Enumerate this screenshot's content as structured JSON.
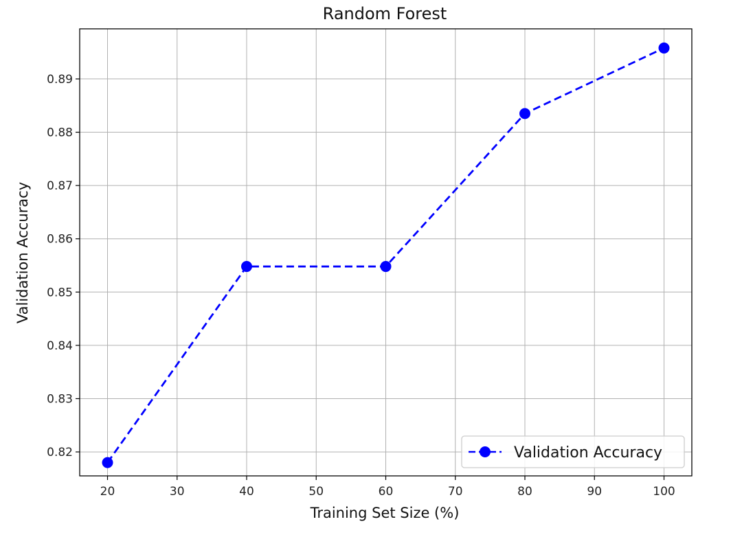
{
  "chart_data": {
    "type": "line",
    "title": "Random Forest",
    "xlabel": "Training Set Size (%)",
    "ylabel": "Validation Accuracy",
    "x": [
      20,
      40,
      60,
      80,
      100
    ],
    "series": [
      {
        "name": "Validation Accuracy",
        "values": [
          0.818,
          0.8548,
          0.8548,
          0.8835,
          0.8958
        ],
        "color": "#0000ff",
        "line_style": "dashed",
        "marker": "circle"
      }
    ],
    "xlim": [
      16,
      104
    ],
    "ylim": [
      0.8155,
      0.8994
    ],
    "xticks": [
      20,
      30,
      40,
      50,
      60,
      70,
      80,
      90,
      100
    ],
    "yticks": [
      0.82,
      0.83,
      0.84,
      0.85,
      0.86,
      0.87,
      0.88,
      0.89
    ],
    "xtick_labels": [
      "20",
      "30",
      "40",
      "50",
      "60",
      "70",
      "80",
      "90",
      "100"
    ],
    "ytick_labels": [
      "0.82",
      "0.83",
      "0.84",
      "0.85",
      "0.86",
      "0.87",
      "0.88",
      "0.89"
    ],
    "grid": true,
    "legend_position": "lower-right"
  }
}
